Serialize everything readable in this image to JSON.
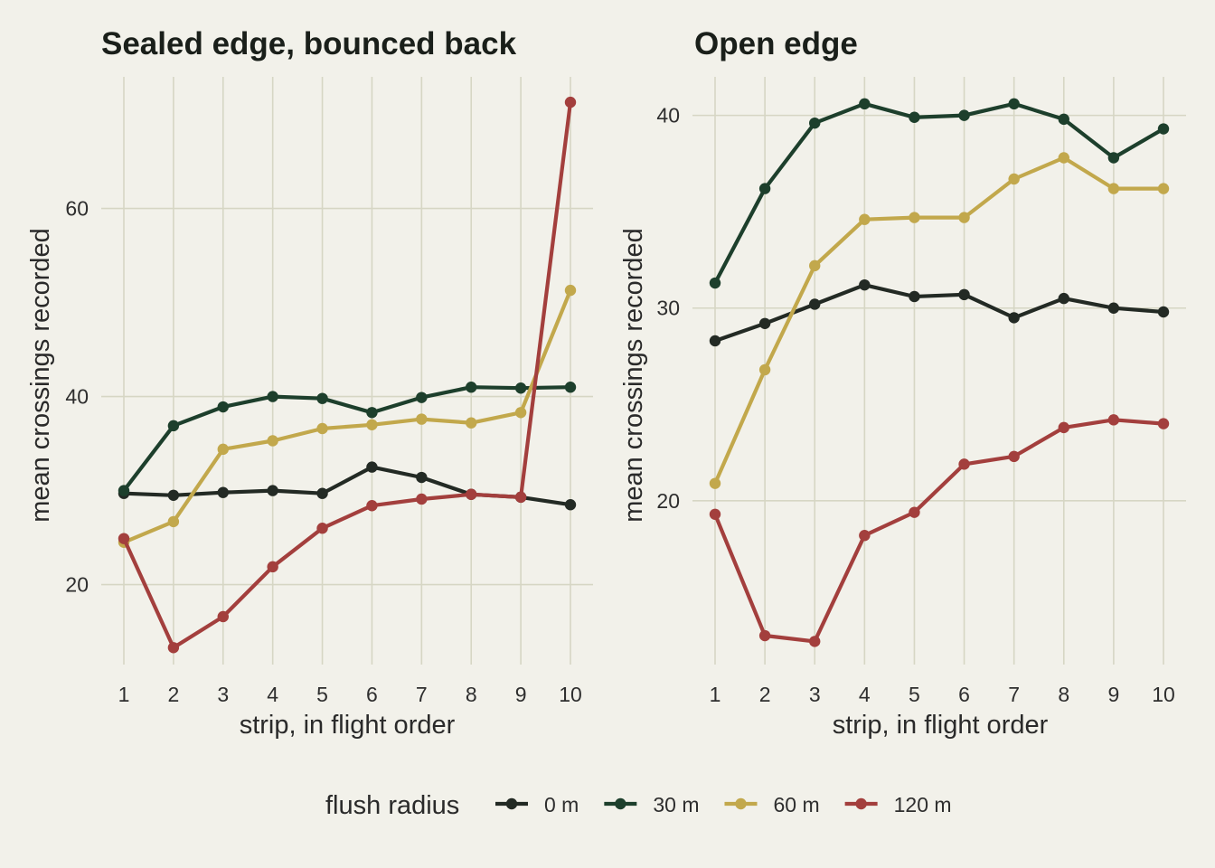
{
  "chart_data": [
    {
      "type": "line",
      "title": "Sealed edge, bounced back",
      "xlabel": "strip, in flight order",
      "ylabel": "mean crossings recorded",
      "x": [
        1,
        2,
        3,
        4,
        5,
        6,
        7,
        8,
        9,
        10
      ],
      "ylim": [
        11.5,
        74
      ],
      "yticks": [
        20,
        40,
        60
      ],
      "grid": true,
      "series": [
        {
          "name": "0 m",
          "color": "#232a24",
          "values": [
            29.7,
            29.5,
            29.8,
            30.0,
            29.7,
            32.5,
            31.4,
            29.6,
            29.3,
            28.5
          ]
        },
        {
          "name": "30 m",
          "color": "#1d3f2c",
          "values": [
            30.0,
            36.9,
            38.9,
            40.0,
            39.8,
            38.3,
            39.9,
            41.0,
            40.9,
            41.0
          ]
        },
        {
          "name": "60 m",
          "color": "#c2a84c",
          "values": [
            24.5,
            26.7,
            34.4,
            35.3,
            36.6,
            37.0,
            37.6,
            37.2,
            38.3,
            51.3
          ]
        },
        {
          "name": "120 m",
          "color": "#a33f3d",
          "values": [
            24.9,
            13.3,
            16.6,
            21.9,
            26.0,
            28.4,
            29.1,
            29.6,
            29.3,
            71.3
          ]
        }
      ]
    },
    {
      "type": "line",
      "title": "Open edge",
      "xlabel": "strip, in flight order",
      "ylabel": "mean crossings recorded",
      "x": [
        1,
        2,
        3,
        4,
        5,
        6,
        7,
        8,
        9,
        10
      ],
      "ylim": [
        11.5,
        42
      ],
      "yticks": [
        20,
        30,
        40
      ],
      "grid": true,
      "series": [
        {
          "name": "0 m",
          "color": "#232a24",
          "values": [
            28.3,
            29.2,
            30.2,
            31.2,
            30.6,
            30.7,
            29.5,
            30.5,
            30.0,
            29.8
          ]
        },
        {
          "name": "30 m",
          "color": "#1d3f2c",
          "values": [
            31.3,
            36.2,
            39.6,
            40.6,
            39.9,
            40.0,
            40.6,
            39.8,
            37.8,
            39.3
          ]
        },
        {
          "name": "60 m",
          "color": "#c2a84c",
          "values": [
            20.9,
            26.8,
            32.2,
            34.6,
            34.7,
            34.7,
            36.7,
            37.8,
            36.2,
            36.2
          ]
        },
        {
          "name": "120 m",
          "color": "#a33f3d",
          "values": [
            19.3,
            13.0,
            12.7,
            18.2,
            19.4,
            21.9,
            22.3,
            23.8,
            24.2,
            24.0
          ]
        }
      ]
    }
  ],
  "legend": {
    "title": "flush radius",
    "placement": "bottom",
    "items": [
      {
        "label": "0 m",
        "color": "#232a24"
      },
      {
        "label": "30 m",
        "color": "#1d3f2c"
      },
      {
        "label": "60 m",
        "color": "#c2a84c"
      },
      {
        "label": "120 m",
        "color": "#a33f3d"
      }
    ]
  }
}
